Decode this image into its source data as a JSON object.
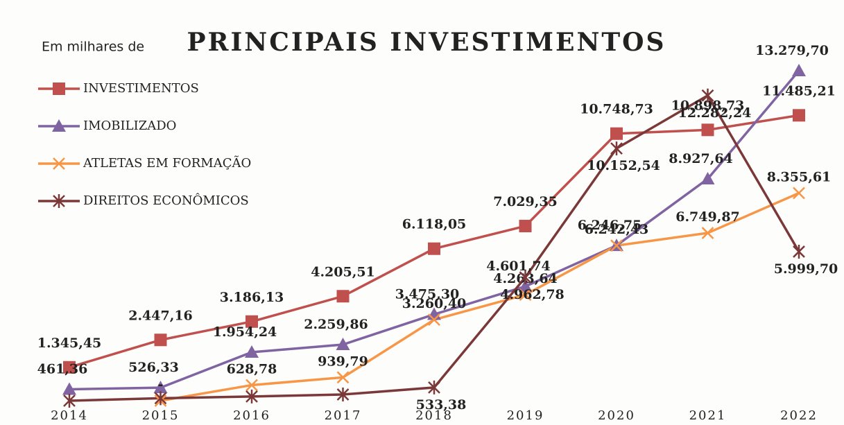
{
  "chart_data": {
    "type": "line",
    "title": "PRINCIPAIS INVESTIMENTOS",
    "subtitle": "Em milhares de",
    "categories": [
      "2014",
      "2015",
      "2016",
      "2017",
      "2018",
      "2019",
      "2020",
      "2021",
      "2022"
    ],
    "legend": "top-left",
    "series": [
      {
        "name": "INVESTIMENTOS",
        "color": "#c0504d",
        "marker": "square",
        "values": [
          1345.45,
          2447.16,
          3186.13,
          4205.51,
          6118.05,
          7029.35,
          10748.73,
          10898.73,
          11485.21
        ],
        "value_labels": [
          "1.345,45",
          "2.447,16",
          "3.186,13",
          "4.205,51",
          "6.118,05",
          "7.029,35",
          "10.748,73",
          "10.898,73",
          "11.485,21"
        ]
      },
      {
        "name": "IMOBILIZADO",
        "color": "#8064a2",
        "marker": "triangle",
        "values": [
          461.36,
          526.33,
          1954.24,
          2259.86,
          3475.3,
          4601.74,
          6246.75,
          8927.64,
          13279.7
        ],
        "value_labels": [
          "461,36",
          "526,33",
          "1.954,24",
          "2.259,86",
          "3.475,30",
          "4.601,74",
          "6.246,75",
          "8.927,64",
          "13.279,70"
        ]
      },
      {
        "name": "ATLETAS EM FORMAÇÃO",
        "color": "#f79646",
        "marker": "x",
        "values": [
          null,
          0,
          628.78,
          939.79,
          3260.4,
          4263.64,
          6242.43,
          6749.87,
          8355.61
        ],
        "value_labels": [
          null,
          "-",
          "628,78",
          "939,79",
          "3.260,40",
          "4.263,64",
          "6.242,43",
          "6.749,87",
          "8.355,61"
        ]
      },
      {
        "name": "DIREITOS ECONÔMICOS",
        "color": "#7b3838",
        "marker": "star",
        "values": [
          0,
          100,
          170,
          250,
          533.38,
          4962.78,
          10152.54,
          12282.24,
          5999.7
        ],
        "value_labels": [
          null,
          null,
          null,
          null,
          "533,38",
          "4.962,78",
          "10.152,54",
          "12.282,24",
          "5.999,70"
        ]
      }
    ]
  }
}
